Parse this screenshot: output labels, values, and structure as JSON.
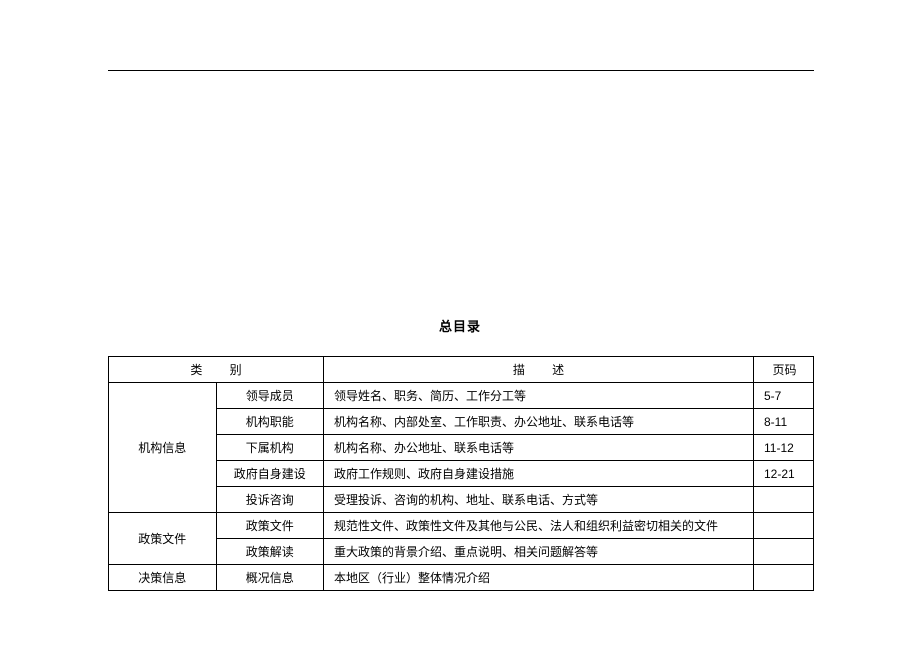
{
  "title": "总目录",
  "headers": {
    "category": "类  别",
    "description": "描  述",
    "page": "页码"
  },
  "rows": [
    {
      "category": "机构信息",
      "categoryRowspan": 5,
      "sub": "领导成员",
      "desc": "领导姓名、职务、简历、工作分工等",
      "page": "5-7"
    },
    {
      "sub": "机构职能",
      "desc": "机构名称、内部处室、工作职责、办公地址、联系电话等",
      "page": "8-11"
    },
    {
      "sub": "下属机构",
      "desc": "机构名称、办公地址、联系电话等",
      "page": "11-12"
    },
    {
      "sub": "政府自身建设",
      "desc": "政府工作规则、政府自身建设措施",
      "page": "12-21"
    },
    {
      "sub": "投诉咨询",
      "desc": "受理投诉、咨询的机构、地址、联系电话、方式等",
      "page": ""
    },
    {
      "category": "政策文件",
      "categoryRowspan": 2,
      "sub": "政策文件",
      "desc": "规范性文件、政策性文件及其他与公民、法人和组织利益密切相关的文件",
      "page": ""
    },
    {
      "sub": "政策解读",
      "desc": "重大政策的背景介绍、重点说明、相关问题解答等",
      "page": ""
    },
    {
      "category": "决策信息",
      "categoryRowspan": 1,
      "sub": "概况信息",
      "desc": "本地区（行业）整体情况介绍",
      "page": ""
    }
  ]
}
